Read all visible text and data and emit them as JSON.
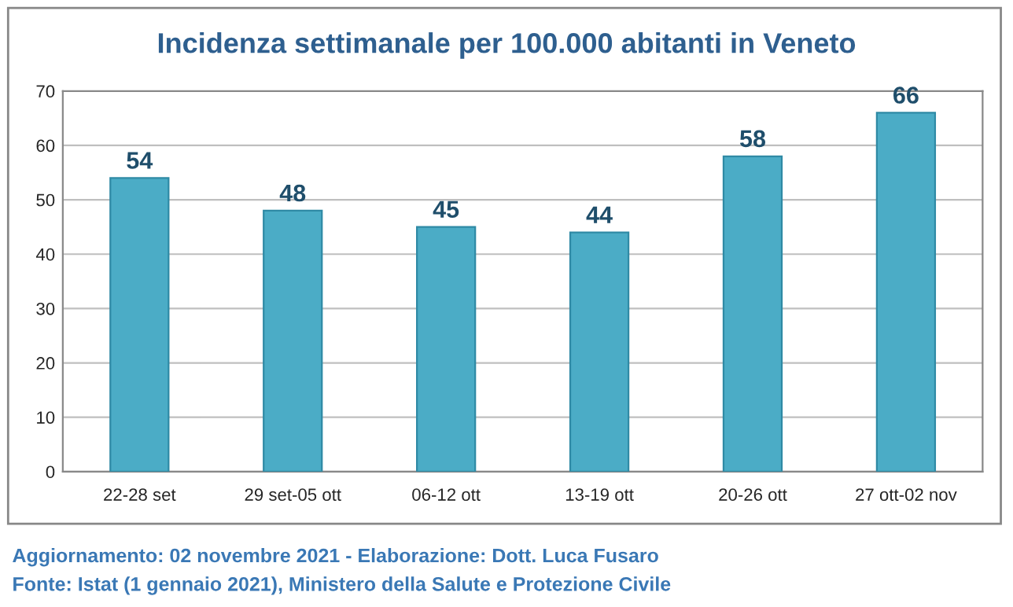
{
  "chart_data": {
    "type": "bar",
    "title": "Incidenza settimanale per 100.000 abitanti in Veneto",
    "categories": [
      "22-28 set",
      "29 set-05 ott",
      "06-12 ott",
      "13-19 ott",
      "20-26 ott",
      "27 ott-02 nov"
    ],
    "values": [
      54,
      48,
      45,
      44,
      58,
      66
    ],
    "color": "#4bacc6",
    "ylim": [
      0,
      70
    ],
    "yticks": [
      0,
      10,
      20,
      30,
      40,
      50,
      60,
      70
    ],
    "grid": "y",
    "data_labels": true,
    "annotations": [
      "Aggiornamento: 02 novembre 2021 - Elaborazione: Dott. Luca Fusaro",
      "Fonte: Istat (1 gennaio 2021), Ministero della Salute e Protezione Civile"
    ]
  }
}
